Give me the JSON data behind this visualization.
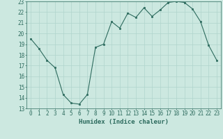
{
  "x": [
    0,
    1,
    2,
    3,
    4,
    5,
    6,
    7,
    8,
    9,
    10,
    11,
    12,
    13,
    14,
    15,
    16,
    17,
    18,
    19,
    20,
    21,
    22,
    23
  ],
  "y": [
    19.5,
    18.6,
    17.5,
    16.8,
    14.3,
    13.5,
    13.4,
    14.3,
    18.7,
    19.0,
    21.1,
    20.5,
    21.9,
    21.5,
    22.4,
    21.6,
    22.2,
    22.9,
    23.0,
    22.9,
    22.3,
    21.1,
    18.9,
    17.5
  ],
  "xlabel": "Humidex (Indice chaleur)",
  "ylim": [
    13,
    23
  ],
  "xlim_min": -0.5,
  "xlim_max": 23.5,
  "yticks": [
    13,
    14,
    15,
    16,
    17,
    18,
    19,
    20,
    21,
    22,
    23
  ],
  "xticks": [
    0,
    1,
    2,
    3,
    4,
    5,
    6,
    7,
    8,
    9,
    10,
    11,
    12,
    13,
    14,
    15,
    16,
    17,
    18,
    19,
    20,
    21,
    22,
    23
  ],
  "line_color": "#2d6b5e",
  "marker_color": "#2d6b5e",
  "bg_color": "#cce8e0",
  "grid_color": "#b0d4cc",
  "tick_label_color": "#2d6b5e",
  "xlabel_color": "#2d6b5e",
  "font_size": 5.5,
  "xlabel_font_size": 6.5
}
